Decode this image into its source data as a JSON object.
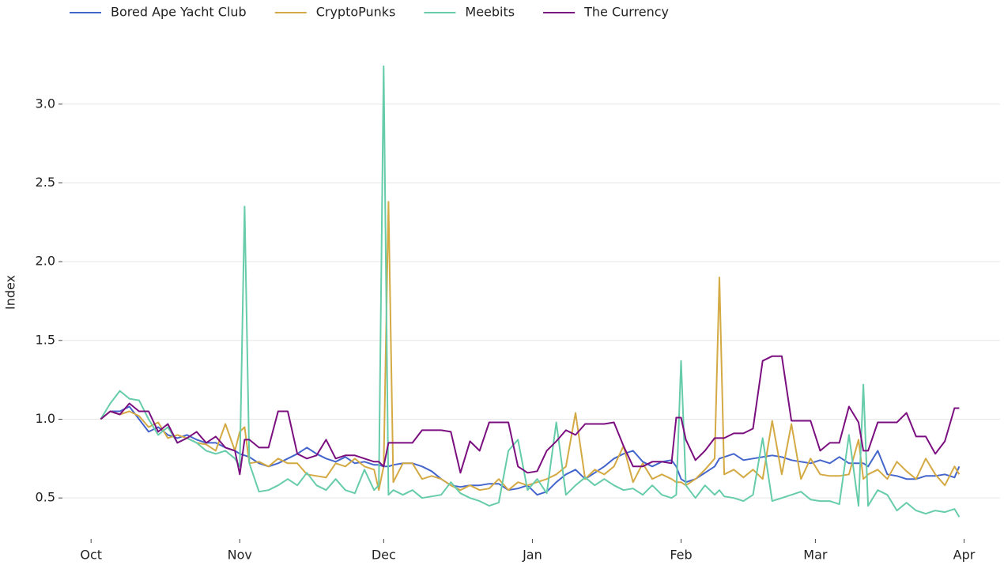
{
  "chart_data": {
    "type": "line",
    "ylabel": "Index",
    "x": [
      2,
      4,
      6,
      8,
      10,
      12,
      14,
      16,
      18,
      20,
      22,
      24,
      26,
      28,
      30,
      31,
      32,
      33,
      35,
      37,
      39,
      41,
      43,
      45,
      47,
      49,
      51,
      53,
      55,
      57,
      59,
      60,
      61,
      62,
      63,
      65,
      67,
      69,
      71,
      73,
      75,
      77,
      79,
      81,
      83,
      85,
      87,
      89,
      91,
      93,
      95,
      97,
      99,
      101,
      103,
      105,
      107,
      109,
      111,
      113,
      115,
      117,
      119,
      121,
      122,
      123,
      124,
      126,
      128,
      130,
      131,
      132,
      134,
      136,
      138,
      140,
      142,
      144,
      146,
      148,
      150,
      152,
      154,
      156,
      158,
      160,
      161,
      162,
      164,
      166,
      168,
      170,
      172,
      174,
      176,
      178,
      180,
      181
    ],
    "xlim": [
      -5.8,
      189.5
    ],
    "xticks": [
      {
        "value": 0,
        "label": "Oct"
      },
      {
        "value": 31,
        "label": "Nov"
      },
      {
        "value": 61,
        "label": "Dec"
      },
      {
        "value": 92,
        "label": "Jan"
      },
      {
        "value": 123,
        "label": "Feb"
      },
      {
        "value": 151,
        "label": "Mar"
      },
      {
        "value": 182,
        "label": "Apr"
      }
    ],
    "ylim": [
      0.25,
      3.36
    ],
    "yticks": [
      0.5,
      {
        "value": 1,
        "label": "1.0"
      },
      1.5,
      {
        "value": 2,
        "label": "2.0"
      },
      2.5,
      {
        "value": 3,
        "label": "3.0"
      }
    ],
    "grid": true,
    "legend": "top-left",
    "series": [
      {
        "name": "Bored Ape Yacht Club",
        "color": "#4466cc",
        "values": [
          1.0,
          1.05,
          1.05,
          1.08,
          1.0,
          0.92,
          0.95,
          0.9,
          0.88,
          0.9,
          0.87,
          0.85,
          0.85,
          0.82,
          0.8,
          0.78,
          0.77,
          0.76,
          0.72,
          0.7,
          0.72,
          0.75,
          0.78,
          0.82,
          0.78,
          0.75,
          0.73,
          0.76,
          0.72,
          0.73,
          0.71,
          0.71,
          0.7,
          0.7,
          0.71,
          0.72,
          0.72,
          0.7,
          0.67,
          0.62,
          0.58,
          0.57,
          0.58,
          0.58,
          0.59,
          0.59,
          0.55,
          0.56,
          0.58,
          0.52,
          0.54,
          0.6,
          0.65,
          0.68,
          0.62,
          0.66,
          0.7,
          0.75,
          0.78,
          0.8,
          0.73,
          0.7,
          0.73,
          0.74,
          0.7,
          0.62,
          0.6,
          0.62,
          0.66,
          0.7,
          0.75,
          0.76,
          0.78,
          0.74,
          0.75,
          0.76,
          0.77,
          0.76,
          0.74,
          0.73,
          0.72,
          0.74,
          0.72,
          0.76,
          0.72,
          0.72,
          0.72,
          0.7,
          0.8,
          0.65,
          0.64,
          0.62,
          0.62,
          0.64,
          0.64,
          0.65,
          0.63,
          0.7
        ]
      },
      {
        "name": "CryptoPunks",
        "color": "#d4aa44",
        "values": [
          1.0,
          1.05,
          1.03,
          1.05,
          1.02,
          0.95,
          0.98,
          0.88,
          0.9,
          0.88,
          0.85,
          0.84,
          0.8,
          0.97,
          0.8,
          0.92,
          0.95,
          0.72,
          0.73,
          0.7,
          0.75,
          0.72,
          0.72,
          0.65,
          0.64,
          0.63,
          0.72,
          0.7,
          0.75,
          0.7,
          0.68,
          0.55,
          0.7,
          2.38,
          0.6,
          0.72,
          0.72,
          0.62,
          0.64,
          0.62,
          0.58,
          0.55,
          0.58,
          0.55,
          0.56,
          0.62,
          0.55,
          0.6,
          0.58,
          0.6,
          0.62,
          0.65,
          0.7,
          1.04,
          0.62,
          0.68,
          0.65,
          0.7,
          0.83,
          0.6,
          0.72,
          0.62,
          0.65,
          0.62,
          0.6,
          0.6,
          0.58,
          0.62,
          0.68,
          0.75,
          1.9,
          0.65,
          0.68,
          0.63,
          0.68,
          0.62,
          0.99,
          0.65,
          0.97,
          0.62,
          0.75,
          0.65,
          0.64,
          0.64,
          0.65,
          0.87,
          0.62,
          0.65,
          0.68,
          0.62,
          0.73,
          0.67,
          0.62,
          0.75,
          0.65,
          0.58,
          0.7,
          0.65
        ]
      },
      {
        "name": "Meebits",
        "color": "#66ccaa",
        "values": [
          1.0,
          1.1,
          1.18,
          1.13,
          1.12,
          1.0,
          0.9,
          0.95,
          0.85,
          0.88,
          0.85,
          0.8,
          0.78,
          0.8,
          0.75,
          0.7,
          2.35,
          0.72,
          0.54,
          0.55,
          0.58,
          0.62,
          0.58,
          0.66,
          0.58,
          0.55,
          0.62,
          0.55,
          0.53,
          0.68,
          0.55,
          0.58,
          3.24,
          0.52,
          0.55,
          0.52,
          0.55,
          0.5,
          0.51,
          0.52,
          0.6,
          0.53,
          0.5,
          0.48,
          0.45,
          0.47,
          0.8,
          0.87,
          0.55,
          0.62,
          0.53,
          0.98,
          0.52,
          0.58,
          0.63,
          0.58,
          0.62,
          0.58,
          0.55,
          0.56,
          0.52,
          0.58,
          0.52,
          0.5,
          0.52,
          1.37,
          0.58,
          0.5,
          0.58,
          0.52,
          0.55,
          0.51,
          0.5,
          0.48,
          0.52,
          0.88,
          0.48,
          0.5,
          0.52,
          0.54,
          0.49,
          0.48,
          0.48,
          0.46,
          0.9,
          0.45,
          1.22,
          0.45,
          0.55,
          0.52,
          0.42,
          0.47,
          0.42,
          0.4,
          0.42,
          0.41,
          0.43,
          0.38
        ]
      },
      {
        "name": "The Currency",
        "color": "#7b0f7f",
        "values": [
          1.0,
          1.05,
          1.03,
          1.1,
          1.05,
          1.05,
          0.92,
          0.97,
          0.85,
          0.88,
          0.92,
          0.85,
          0.89,
          0.82,
          0.8,
          0.65,
          0.87,
          0.87,
          0.82,
          0.82,
          1.05,
          1.05,
          0.78,
          0.75,
          0.77,
          0.87,
          0.75,
          0.77,
          0.77,
          0.75,
          0.73,
          0.73,
          0.7,
          0.85,
          0.85,
          0.85,
          0.85,
          0.93,
          0.93,
          0.93,
          0.92,
          0.66,
          0.86,
          0.8,
          0.98,
          0.98,
          0.98,
          0.7,
          0.66,
          0.67,
          0.8,
          0.86,
          0.93,
          0.9,
          0.97,
          0.97,
          0.97,
          0.98,
          0.83,
          0.7,
          0.7,
          0.73,
          0.73,
          0.72,
          1.01,
          1.01,
          0.87,
          0.74,
          0.8,
          0.88,
          0.88,
          0.88,
          0.91,
          0.91,
          0.94,
          1.37,
          1.4,
          1.4,
          0.99,
          0.99,
          0.99,
          0.8,
          0.85,
          0.85,
          1.08,
          0.98,
          0.8,
          0.8,
          0.98,
          0.98,
          0.98,
          1.04,
          0.89,
          0.89,
          0.78,
          0.86,
          1.07,
          1.07
        ]
      }
    ]
  }
}
